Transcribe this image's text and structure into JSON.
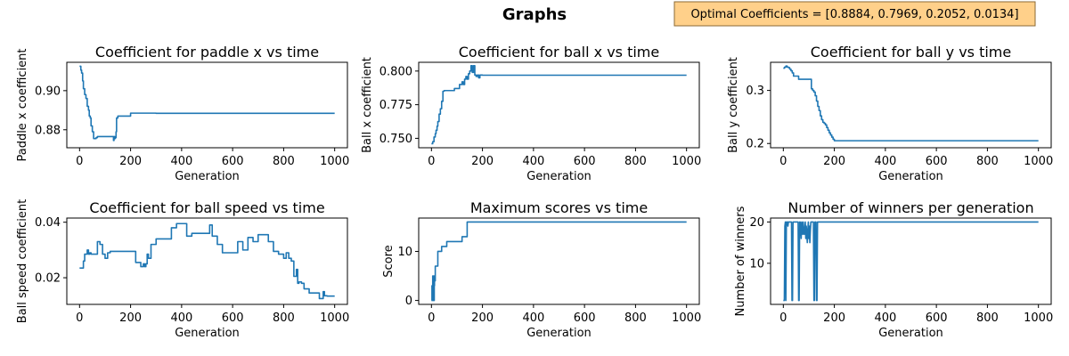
{
  "figure": {
    "title": "Graphs",
    "annotation": "Optimal Coefficients = [0.8884, 0.7969, 0.2052, 0.0134]",
    "annotation_bg": "#ffd08a",
    "line_color": "#1f77b4"
  },
  "chart_data": [
    {
      "type": "line",
      "title": "Coefficient for paddle x vs time",
      "xlabel": "Generation",
      "ylabel": "Paddle x coefficient",
      "xlim": [
        -50,
        1050
      ],
      "ylim": [
        0.8708,
        0.9145
      ],
      "xticks": [
        0,
        200,
        400,
        600,
        800,
        1000
      ],
      "yticks": [
        0.88,
        0.9
      ],
      "ytick_labels": [
        "0.88",
        "0.90"
      ],
      "step": true,
      "x": [
        0,
        5,
        8,
        12,
        15,
        20,
        25,
        30,
        35,
        38,
        42,
        45,
        50,
        55,
        60,
        65,
        70,
        80,
        90,
        100,
        110,
        120,
        130,
        133,
        135,
        138,
        140,
        143,
        145,
        150,
        180,
        200,
        220,
        240,
        260,
        280,
        300,
        1000
      ],
      "y": [
        0.9125,
        0.9105,
        0.909,
        0.905,
        0.901,
        0.898,
        0.896,
        0.892,
        0.89,
        0.887,
        0.886,
        0.882,
        0.879,
        0.8755,
        0.8755,
        0.876,
        0.8765,
        0.8765,
        0.8765,
        0.8765,
        0.8765,
        0.8765,
        0.8765,
        0.8745,
        0.8765,
        0.8755,
        0.876,
        0.879,
        0.886,
        0.887,
        0.887,
        0.8885,
        0.8885,
        0.8885,
        0.8885,
        0.8885,
        0.8884,
        0.8884
      ]
    },
    {
      "type": "line",
      "title": "Coefficient for ball x vs time",
      "xlabel": "Generation",
      "ylabel": "Ball x coefficient",
      "xlim": [
        -50,
        1050
      ],
      "ylim": [
        0.743,
        0.8065
      ],
      "xticks": [
        0,
        200,
        400,
        600,
        800,
        1000
      ],
      "yticks": [
        0.75,
        0.775,
        0.8
      ],
      "ytick_labels": [
        "0.750",
        "0.775",
        "0.800"
      ],
      "step": true,
      "x": [
        0,
        5,
        10,
        15,
        18,
        22,
        25,
        30,
        35,
        40,
        45,
        50,
        60,
        70,
        80,
        90,
        100,
        110,
        120,
        125,
        130,
        135,
        140,
        145,
        150,
        155,
        160,
        165,
        170,
        175,
        180,
        185,
        190,
        200,
        1000
      ],
      "y": [
        0.746,
        0.7475,
        0.751,
        0.7535,
        0.756,
        0.759,
        0.7625,
        0.768,
        0.772,
        0.7775,
        0.785,
        0.7855,
        0.7855,
        0.7855,
        0.7855,
        0.787,
        0.787,
        0.79,
        0.792,
        0.79,
        0.794,
        0.796,
        0.794,
        0.798,
        0.8,
        0.804,
        0.799,
        0.804,
        0.797,
        0.796,
        0.797,
        0.795,
        0.797,
        0.7969,
        0.7969
      ]
    },
    {
      "type": "line",
      "title": "Coefficient for ball y vs time",
      "xlabel": "Generation",
      "ylabel": "Ball y coefficient",
      "xlim": [
        -50,
        1050
      ],
      "ylim": [
        0.192,
        0.353
      ],
      "xticks": [
        0,
        200,
        400,
        600,
        800,
        1000
      ],
      "yticks": [
        0.2,
        0.3
      ],
      "ytick_labels": [
        "0.2",
        "0.3"
      ],
      "step": true,
      "x": [
        0,
        5,
        10,
        15,
        20,
        25,
        30,
        35,
        40,
        50,
        60,
        70,
        80,
        90,
        100,
        110,
        115,
        120,
        125,
        130,
        135,
        140,
        145,
        150,
        155,
        160,
        165,
        170,
        175,
        180,
        185,
        190,
        195,
        200,
        205,
        1000
      ],
      "y": [
        0.342,
        0.344,
        0.346,
        0.344,
        0.343,
        0.34,
        0.337,
        0.333,
        0.327,
        0.327,
        0.321,
        0.321,
        0.321,
        0.321,
        0.321,
        0.303,
        0.3,
        0.297,
        0.29,
        0.28,
        0.27,
        0.262,
        0.252,
        0.245,
        0.24,
        0.238,
        0.235,
        0.23,
        0.225,
        0.22,
        0.216,
        0.212,
        0.208,
        0.2052,
        0.2052,
        0.2052
      ]
    },
    {
      "type": "line",
      "title": "Coefficient for ball speed vs time",
      "xlabel": "Generation",
      "ylabel": "Ball speed coefficient",
      "xlim": [
        -50,
        1050
      ],
      "ylim": [
        0.0104,
        0.0415
      ],
      "xticks": [
        0,
        200,
        400,
        600,
        800,
        1000
      ],
      "yticks": [
        0.02,
        0.04
      ],
      "ytick_labels": [
        "0.02",
        "0.04"
      ],
      "step": true,
      "x": [
        0,
        5,
        10,
        15,
        20,
        25,
        30,
        35,
        40,
        45,
        50,
        60,
        70,
        80,
        90,
        100,
        110,
        120,
        130,
        140,
        150,
        160,
        170,
        180,
        190,
        200,
        220,
        240,
        250,
        255,
        260,
        265,
        270,
        280,
        290,
        300,
        320,
        340,
        360,
        380,
        400,
        420,
        440,
        460,
        480,
        500,
        510,
        520,
        530,
        540,
        560,
        580,
        600,
        620,
        640,
        660,
        680,
        700,
        720,
        740,
        760,
        780,
        800,
        810,
        820,
        830,
        840,
        850,
        855,
        860,
        870,
        880,
        900,
        920,
        940,
        950,
        955,
        960,
        970,
        1000
      ],
      "y": [
        0.0235,
        0.0235,
        0.0235,
        0.026,
        0.0285,
        0.0285,
        0.03,
        0.0285,
        0.029,
        0.0285,
        0.0285,
        0.0285,
        0.033,
        0.032,
        0.0285,
        0.027,
        0.029,
        0.0295,
        0.0295,
        0.0295,
        0.0295,
        0.0295,
        0.0295,
        0.0295,
        0.0295,
        0.0295,
        0.0255,
        0.024,
        0.025,
        0.024,
        0.025,
        0.0285,
        0.027,
        0.032,
        0.032,
        0.034,
        0.034,
        0.034,
        0.038,
        0.0395,
        0.0395,
        0.035,
        0.036,
        0.036,
        0.036,
        0.036,
        0.039,
        0.035,
        0.035,
        0.032,
        0.029,
        0.029,
        0.029,
        0.033,
        0.03,
        0.0345,
        0.033,
        0.0355,
        0.0355,
        0.033,
        0.0295,
        0.0285,
        0.027,
        0.029,
        0.027,
        0.026,
        0.0205,
        0.023,
        0.018,
        0.0185,
        0.018,
        0.016,
        0.0145,
        0.0145,
        0.0125,
        0.0125,
        0.015,
        0.0135,
        0.0134,
        0.0134
      ]
    },
    {
      "type": "line",
      "title": "Maximum scores vs time",
      "xlabel": "Generation",
      "ylabel": "Score",
      "xlim": [
        -50,
        1050
      ],
      "ylim": [
        -0.8,
        16.8
      ],
      "xticks": [
        0,
        200,
        400,
        600,
        800,
        1000
      ],
      "yticks": [
        0,
        10
      ],
      "ytick_labels": [
        "0",
        "10"
      ],
      "step": true,
      "x": [
        0,
        2,
        4,
        5,
        6,
        7,
        8,
        9,
        10,
        11,
        12,
        13,
        15,
        20,
        25,
        30,
        35,
        40,
        50,
        60,
        70,
        80,
        90,
        100,
        110,
        120,
        130,
        140,
        1000
      ],
      "y": [
        0,
        3,
        0,
        5,
        0,
        4,
        1,
        5,
        0,
        3,
        5,
        4,
        7,
        7,
        10,
        10,
        10,
        11,
        11,
        12,
        12,
        12,
        12,
        12,
        12,
        13,
        13,
        16,
        16
      ]
    },
    {
      "type": "line",
      "title": "Number of winners per generation",
      "xlabel": "Generation",
      "ylabel": "Number of winners",
      "xlim": [
        -50,
        1050
      ],
      "ylim": [
        0.05,
        20.95
      ],
      "xticks": [
        0,
        200,
        400,
        600,
        800,
        1000
      ],
      "yticks": [
        10,
        20
      ],
      "ytick_labels": [
        "10",
        "20"
      ],
      "step": false,
      "x": [
        0,
        2,
        4,
        6,
        8,
        10,
        12,
        14,
        16,
        18,
        20,
        22,
        24,
        26,
        28,
        30,
        32,
        34,
        36,
        38,
        40,
        42,
        44,
        46,
        48,
        50,
        52,
        54,
        56,
        58,
        60,
        62,
        64,
        66,
        68,
        70,
        72,
        74,
        76,
        78,
        80,
        82,
        84,
        86,
        88,
        90,
        92,
        94,
        96,
        98,
        100,
        102,
        104,
        106,
        108,
        110,
        112,
        114,
        116,
        118,
        120,
        122,
        124,
        126,
        128,
        130,
        132,
        134,
        136,
        138,
        140,
        142,
        1000
      ],
      "y": [
        1,
        1,
        1,
        19,
        20,
        1,
        20,
        20,
        20,
        19,
        20,
        20,
        20,
        20,
        20,
        20,
        20,
        1,
        1,
        20,
        20,
        20,
        20,
        20,
        20,
        20,
        20,
        20,
        20,
        20,
        1,
        1,
        20,
        20,
        18,
        16,
        20,
        19,
        17,
        20,
        18,
        17,
        18,
        20,
        16,
        19,
        17,
        15,
        18,
        20,
        16,
        19,
        15,
        18,
        20,
        20,
        20,
        20,
        20,
        20,
        1,
        1,
        20,
        20,
        20,
        1,
        1,
        20,
        20,
        20,
        20,
        20,
        20
      ]
    }
  ]
}
